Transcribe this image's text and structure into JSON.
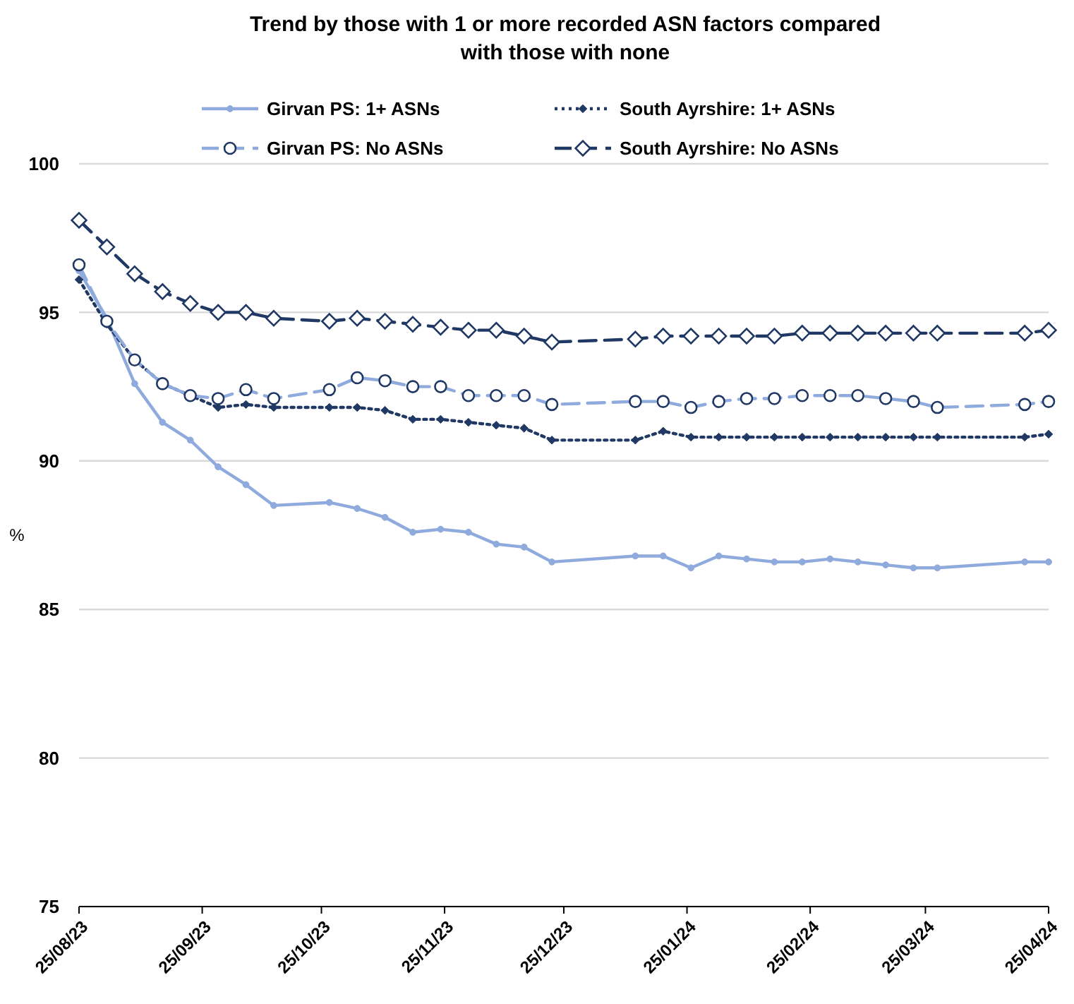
{
  "chart_data": {
    "type": "line",
    "title": "Trend by those with 1 or more recorded ASN factors compared with those with none",
    "ylabel": "%",
    "x": [
      "2023-08-25",
      "2023-09-01",
      "2023-09-08",
      "2023-09-15",
      "2023-09-22",
      "2023-09-29",
      "2023-10-06",
      "2023-10-13",
      "2023-10-27",
      "2023-11-03",
      "2023-11-10",
      "2023-11-17",
      "2023-11-24",
      "2023-12-01",
      "2023-12-08",
      "2023-12-15",
      "2023-12-22",
      "2024-01-12",
      "2024-01-19",
      "2024-01-26",
      "2024-02-02",
      "2024-02-09",
      "2024-02-16",
      "2024-02-23",
      "2024-03-01",
      "2024-03-08",
      "2024-03-15",
      "2024-03-22",
      "2024-03-28",
      "2024-04-19",
      "2024-04-25"
    ],
    "series": [
      {
        "name": "Girvan PS: 1+ ASNs",
        "color": "#8faadc",
        "line_style": "solid",
        "marker": "circle",
        "values": [
          96.4,
          94.8,
          92.6,
          91.3,
          90.7,
          89.8,
          89.2,
          88.5,
          88.6,
          88.4,
          88.1,
          87.6,
          87.7,
          87.6,
          87.2,
          87.1,
          86.6,
          86.8,
          86.8,
          86.4,
          86.8,
          86.7,
          86.6,
          86.6,
          86.7,
          86.6,
          86.5,
          86.4,
          86.4,
          86.6,
          86.6
        ]
      },
      {
        "name": "South Ayrshire: 1+ ASNs",
        "color": "#203864",
        "line_style": "dotted",
        "marker": "diamond",
        "values": [
          96.1,
          94.6,
          93.4,
          92.6,
          92.2,
          91.8,
          91.9,
          91.8,
          91.8,
          91.8,
          91.7,
          91.4,
          91.4,
          91.3,
          91.2,
          91.1,
          90.7,
          90.7,
          91.0,
          90.8,
          90.8,
          90.8,
          90.8,
          90.8,
          90.8,
          90.8,
          90.8,
          90.8,
          90.8,
          90.8,
          90.9
        ]
      },
      {
        "name": "Girvan PS: No ASNs",
        "color": "#8faadc",
        "line_style": "dashed",
        "marker": "circle",
        "values": [
          96.6,
          94.7,
          93.4,
          92.6,
          92.2,
          92.1,
          92.4,
          92.1,
          92.4,
          92.8,
          92.7,
          92.5,
          92.5,
          92.2,
          92.2,
          92.2,
          91.9,
          92.0,
          92.0,
          91.8,
          92.0,
          92.1,
          92.1,
          92.2,
          92.2,
          92.2,
          92.1,
          92.0,
          91.8,
          91.9,
          92.0
        ]
      },
      {
        "name": "South Ayrshire: No ASNs",
        "color": "#203864",
        "line_style": "dashed",
        "marker": "diamond",
        "values": [
          98.1,
          97.2,
          96.3,
          95.7,
          95.3,
          95.0,
          95.0,
          94.8,
          94.7,
          94.8,
          94.7,
          94.6,
          94.5,
          94.4,
          94.4,
          94.2,
          94.0,
          94.1,
          94.2,
          94.2,
          94.2,
          94.2,
          94.2,
          94.3,
          94.3,
          94.3,
          94.3,
          94.3,
          94.3,
          94.3,
          94.4
        ]
      }
    ],
    "ylim": [
      75,
      100
    ],
    "yticks": [
      75,
      80,
      85,
      90,
      95,
      100
    ],
    "xlim": [
      "2023-08-25",
      "2024-04-25"
    ],
    "xticks": [
      {
        "value": "2023-08-25",
        "label": "25/08/23"
      },
      {
        "value": "2023-09-25",
        "label": "25/09/23"
      },
      {
        "value": "2023-10-25",
        "label": "25/10/23"
      },
      {
        "value": "2023-11-25",
        "label": "25/11/23"
      },
      {
        "value": "2023-12-25",
        "label": "25/12/23"
      },
      {
        "value": "2024-01-25",
        "label": "25/01/24"
      },
      {
        "value": "2024-02-25",
        "label": "25/02/24"
      },
      {
        "value": "2024-03-25",
        "label": "25/03/24"
      },
      {
        "value": "2024-04-25",
        "label": "25/04/24"
      }
    ],
    "grid": "y",
    "legend": "top"
  }
}
